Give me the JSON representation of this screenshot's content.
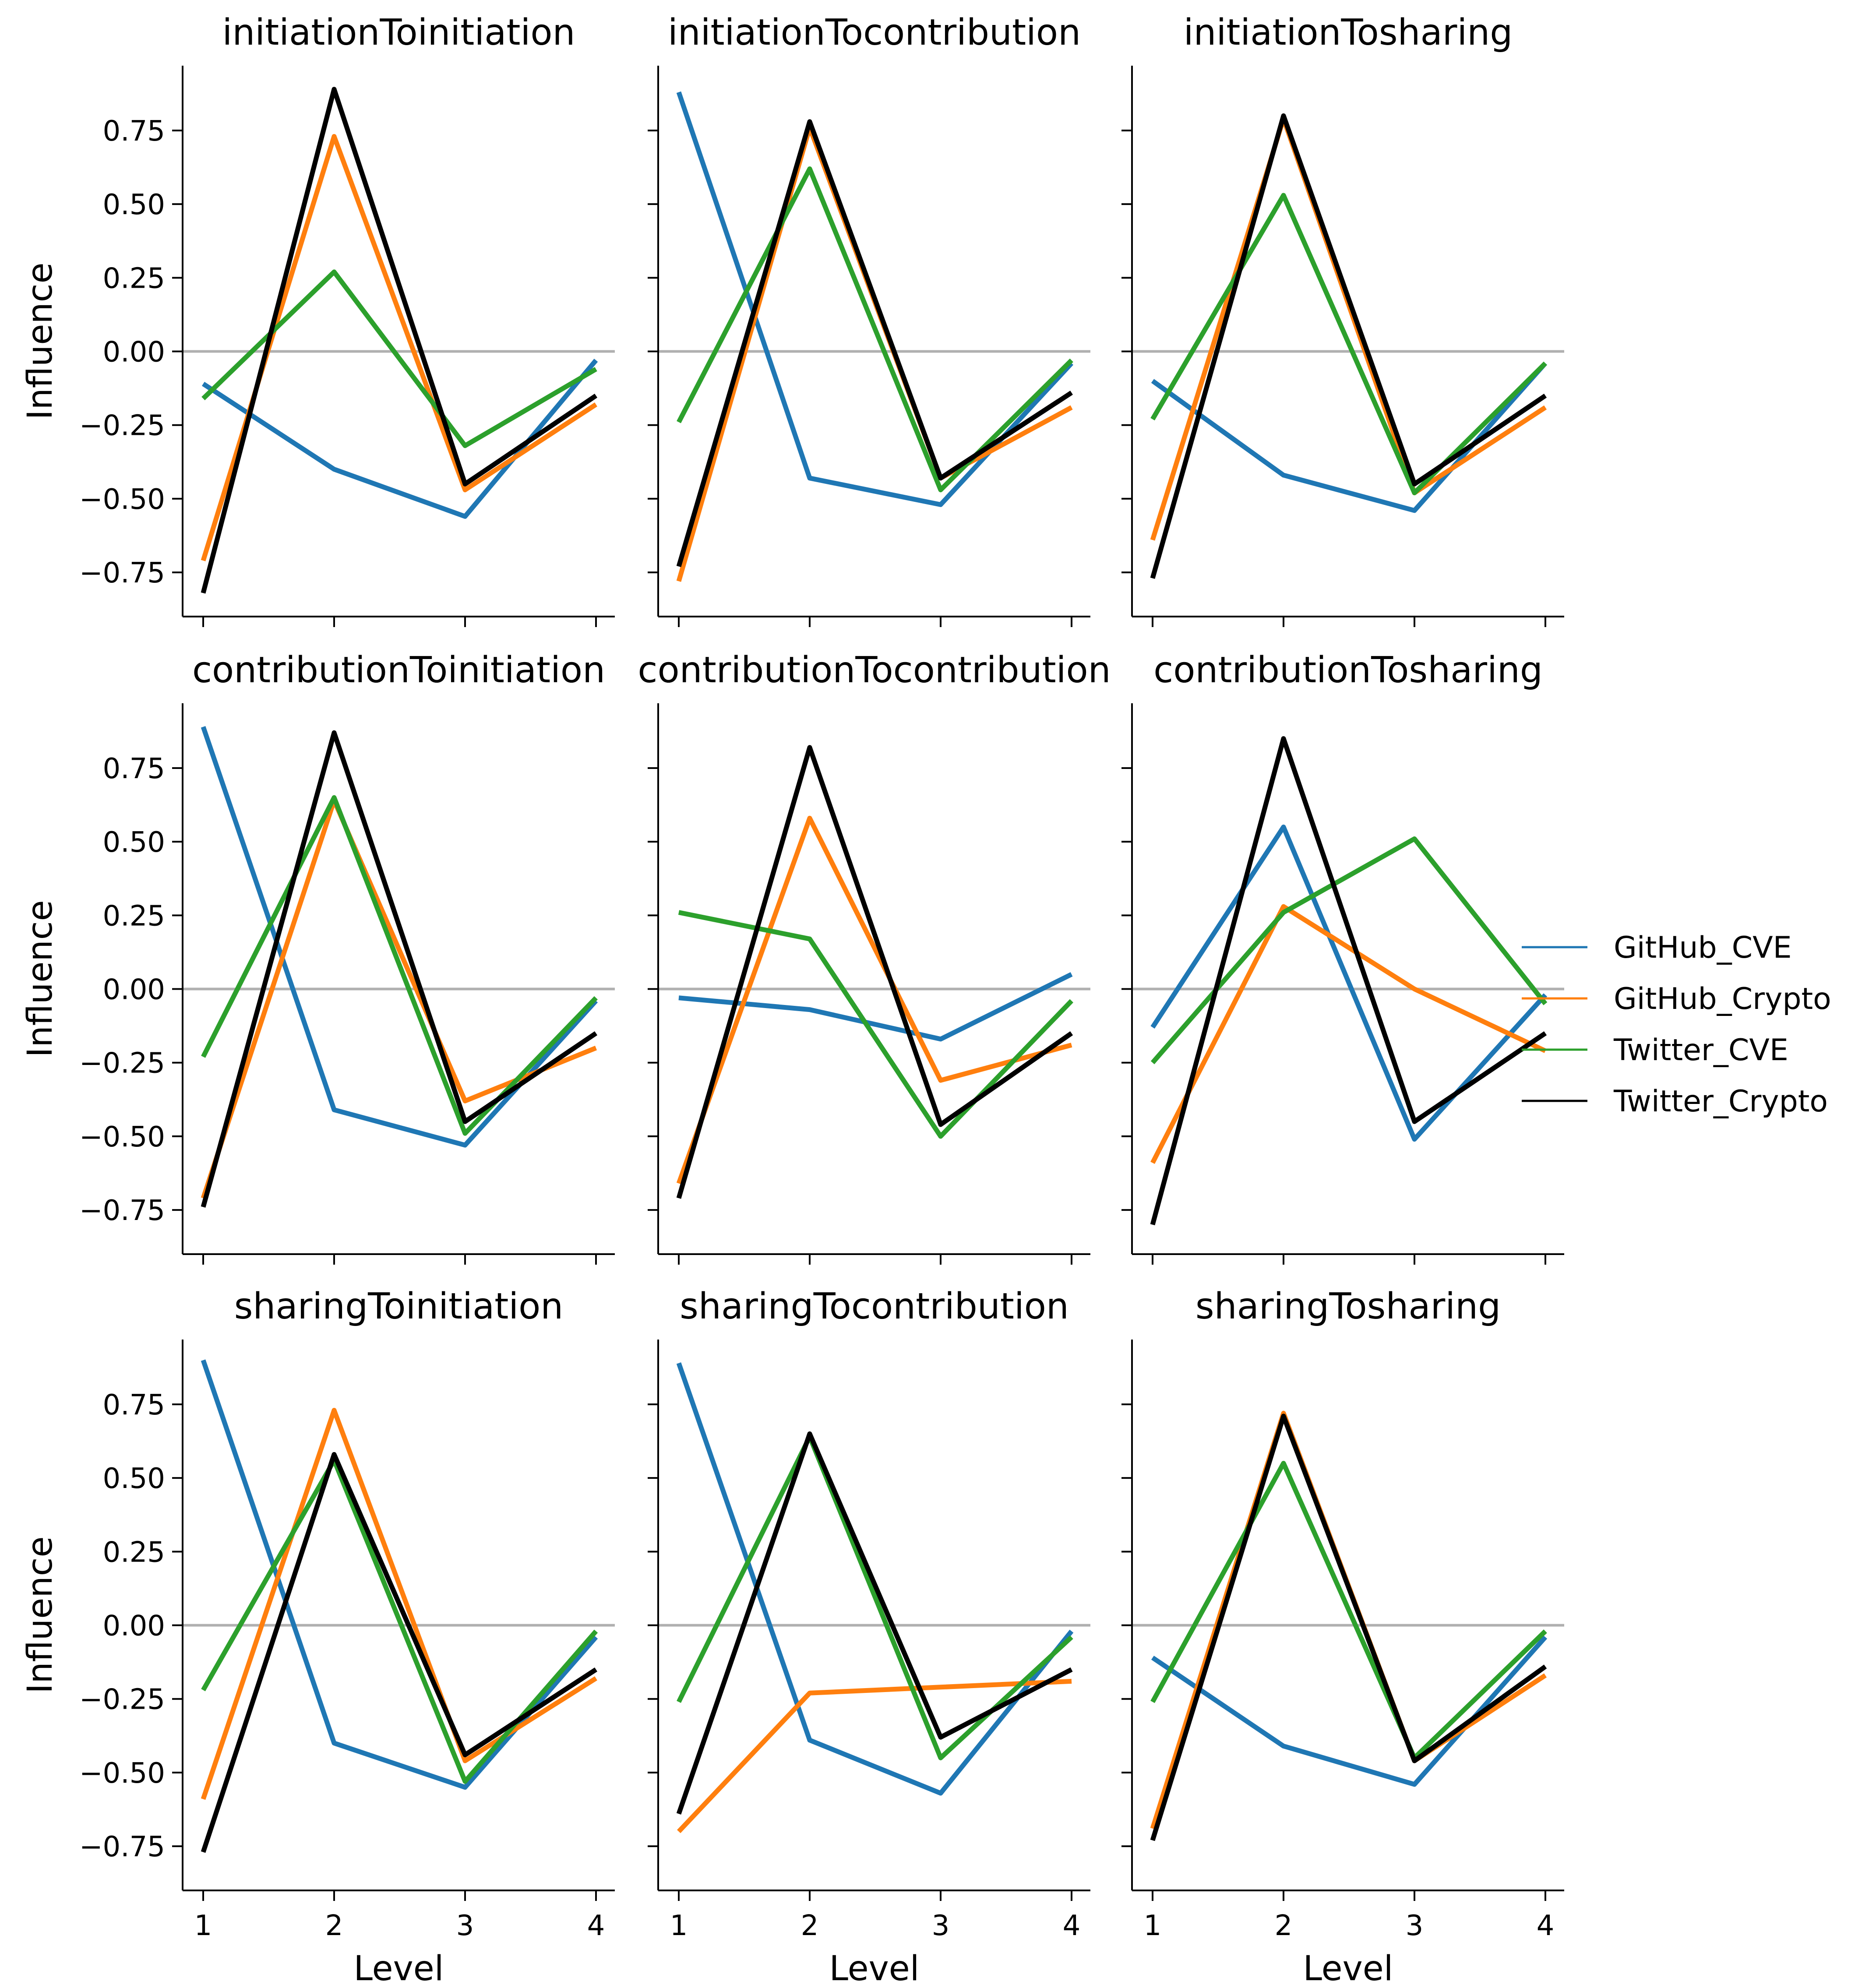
{
  "chart_data": {
    "type": "line",
    "layout": "3x3 small multiples",
    "x": [
      1,
      2,
      3,
      4
    ],
    "x_ticks": [
      "1",
      "2",
      "3",
      "4"
    ],
    "xlabel": "Level",
    "ylabel": "Influence",
    "ylim": [
      -0.9,
      0.97
    ],
    "y_ticks": [
      -0.75,
      -0.5,
      -0.25,
      0.0,
      0.25,
      0.5,
      0.75
    ],
    "y_tick_labels": [
      "−0.75",
      "−0.50",
      "−0.25",
      "0.00",
      "0.25",
      "0.50",
      "0.75"
    ],
    "reference_line": 0.0,
    "legend": {
      "placement": "right",
      "entries": [
        {
          "name": "GitHub_CVE",
          "color": "#1f77b4"
        },
        {
          "name": "GitHub_Crypto",
          "color": "#ff7f0e"
        },
        {
          "name": "Twitter_CVE",
          "color": "#2ca02c"
        },
        {
          "name": "Twitter_Crypto",
          "color": "#000000"
        }
      ]
    },
    "panels": [
      {
        "title": "initiationToinitiation",
        "series": [
          {
            "name": "GitHub_CVE",
            "values": [
              -0.11,
              -0.4,
              -0.56,
              -0.03
            ]
          },
          {
            "name": "GitHub_Crypto",
            "values": [
              -0.71,
              0.73,
              -0.47,
              -0.18
            ]
          },
          {
            "name": "Twitter_CVE",
            "values": [
              -0.16,
              0.27,
              -0.32,
              -0.06
            ]
          },
          {
            "name": "Twitter_Crypto",
            "values": [
              -0.82,
              0.89,
              -0.45,
              -0.15
            ]
          }
        ]
      },
      {
        "title": "initiationTocontribution",
        "series": [
          {
            "name": "GitHub_CVE",
            "values": [
              0.88,
              -0.43,
              -0.52,
              -0.04
            ]
          },
          {
            "name": "GitHub_Crypto",
            "values": [
              -0.78,
              0.76,
              -0.43,
              -0.19
            ]
          },
          {
            "name": "Twitter_CVE",
            "values": [
              -0.24,
              0.62,
              -0.47,
              -0.03
            ]
          },
          {
            "name": "Twitter_Crypto",
            "values": [
              -0.73,
              0.78,
              -0.43,
              -0.14
            ]
          }
        ]
      },
      {
        "title": "initiationTosharing",
        "series": [
          {
            "name": "GitHub_CVE",
            "values": [
              -0.1,
              -0.42,
              -0.54,
              -0.04
            ]
          },
          {
            "name": "GitHub_Crypto",
            "values": [
              -0.64,
              0.79,
              -0.48,
              -0.19
            ]
          },
          {
            "name": "Twitter_CVE",
            "values": [
              -0.23,
              0.53,
              -0.48,
              -0.04
            ]
          },
          {
            "name": "Twitter_Crypto",
            "values": [
              -0.77,
              0.8,
              -0.45,
              -0.15
            ]
          }
        ]
      },
      {
        "title": "contributionToinitiation",
        "series": [
          {
            "name": "GitHub_CVE",
            "values": [
              0.89,
              -0.41,
              -0.53,
              -0.04
            ]
          },
          {
            "name": "GitHub_Crypto",
            "values": [
              -0.71,
              0.64,
              -0.38,
              -0.2
            ]
          },
          {
            "name": "Twitter_CVE",
            "values": [
              -0.23,
              0.65,
              -0.49,
              -0.03
            ]
          },
          {
            "name": "Twitter_Crypto",
            "values": [
              -0.74,
              0.87,
              -0.45,
              -0.15
            ]
          }
        ]
      },
      {
        "title": "contributionTocontribution",
        "series": [
          {
            "name": "GitHub_CVE",
            "values": [
              -0.03,
              -0.07,
              -0.17,
              0.05
            ]
          },
          {
            "name": "GitHub_Crypto",
            "values": [
              -0.66,
              0.58,
              -0.31,
              -0.19
            ]
          },
          {
            "name": "Twitter_CVE",
            "values": [
              0.26,
              0.17,
              -0.5,
              -0.04
            ]
          },
          {
            "name": "Twitter_Crypto",
            "values": [
              -0.71,
              0.82,
              -0.46,
              -0.15
            ]
          }
        ]
      },
      {
        "title": "contributionTosharing",
        "series": [
          {
            "name": "GitHub_CVE",
            "values": [
              -0.13,
              0.55,
              -0.51,
              -0.02
            ]
          },
          {
            "name": "GitHub_Crypto",
            "values": [
              -0.59,
              0.28,
              0.0,
              -0.21
            ]
          },
          {
            "name": "Twitter_CVE",
            "values": [
              -0.25,
              0.26,
              0.51,
              -0.05
            ]
          },
          {
            "name": "Twitter_Crypto",
            "values": [
              -0.8,
              0.85,
              -0.45,
              -0.15
            ]
          }
        ]
      },
      {
        "title": "sharingToinitiation",
        "series": [
          {
            "name": "GitHub_CVE",
            "values": [
              0.9,
              -0.4,
              -0.55,
              -0.04
            ]
          },
          {
            "name": "GitHub_Crypto",
            "values": [
              -0.59,
              0.73,
              -0.46,
              -0.18
            ]
          },
          {
            "name": "Twitter_CVE",
            "values": [
              -0.22,
              0.56,
              -0.53,
              -0.02
            ]
          },
          {
            "name": "Twitter_Crypto",
            "values": [
              -0.77,
              0.58,
              -0.44,
              -0.15
            ]
          }
        ]
      },
      {
        "title": "sharingTocontribution",
        "series": [
          {
            "name": "GitHub_CVE",
            "values": [
              0.89,
              -0.39,
              -0.57,
              -0.02
            ]
          },
          {
            "name": "GitHub_Crypto",
            "values": [
              -0.7,
              -0.23,
              -0.21,
              -0.19
            ]
          },
          {
            "name": "Twitter_CVE",
            "values": [
              -0.26,
              0.64,
              -0.45,
              -0.04
            ]
          },
          {
            "name": "Twitter_Crypto",
            "values": [
              -0.64,
              0.65,
              -0.38,
              -0.15
            ]
          }
        ]
      },
      {
        "title": "sharingTosharing",
        "series": [
          {
            "name": "GitHub_CVE",
            "values": [
              -0.11,
              -0.41,
              -0.54,
              -0.04
            ]
          },
          {
            "name": "GitHub_Crypto",
            "values": [
              -0.69,
              0.72,
              -0.46,
              -0.17
            ]
          },
          {
            "name": "Twitter_CVE",
            "values": [
              -0.26,
              0.55,
              -0.45,
              -0.02
            ]
          },
          {
            "name": "Twitter_Crypto",
            "values": [
              -0.73,
              0.71,
              -0.46,
              -0.14
            ]
          }
        ]
      }
    ]
  }
}
